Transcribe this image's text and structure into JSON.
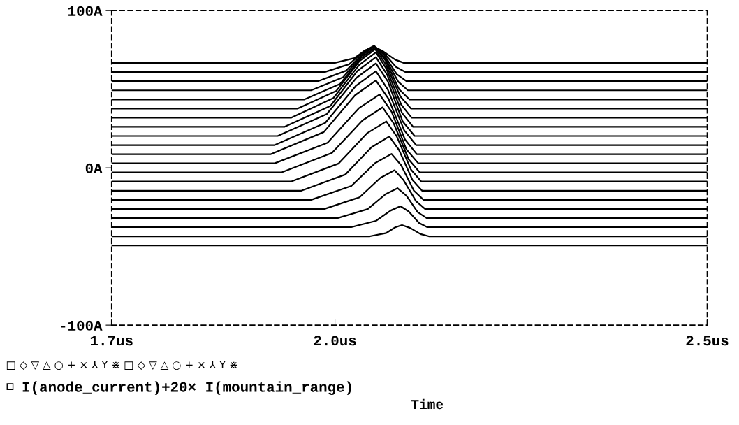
{
  "chart_data": {
    "type": "line",
    "xlabel": "Time",
    "annotations": [
      "□ ◇ ▽ △ ○ + × ⅄ Y ⋇ □ ◇ ▽ △ ○ + × ⅄ Y ⋇"
    ],
    "xlim": [
      1.7,
      2.5
    ],
    "xticks": [
      {
        "value": 1.7,
        "label": "1.7us"
      },
      {
        "value": 2.0,
        "label": "2.0us"
      },
      {
        "value": 2.5,
        "label": "2.5us"
      }
    ],
    "ylim": [
      -100,
      100
    ],
    "yticks": [
      {
        "value": 100,
        "label": "100A"
      },
      {
        "value": 0,
        "label": "0A"
      },
      {
        "value": -100,
        "label": "-100A"
      }
    ],
    "grid": false,
    "legend": "bottom left",
    "marker": "none",
    "line_style": "solid",
    "series": [
      {
        "name": "I(anode_current)+20× I(mountain_range)",
        "color": "#000000",
        "x": [
          1.7,
          1.999,
          2.026,
          2.041,
          2.052,
          2.064,
          2.081,
          2.093,
          2.5
        ],
        "values": [
          66.7,
          66.7,
          69.8,
          74.9,
          77.0,
          74.4,
          68.8,
          66.7,
          66.7
        ]
      },
      {
        "color": "#000000",
        "x": [
          1.7,
          1.986,
          2.019,
          2.039,
          2.052,
          2.065,
          2.082,
          2.095,
          2.5
        ],
        "values": [
          60.9,
          60.9,
          65.9,
          74.2,
          77.5,
          73.4,
          64.2,
          60.9,
          60.9
        ]
      },
      {
        "color": "#000000",
        "x": [
          1.7,
          1.977,
          2.015,
          2.038,
          2.053,
          2.066,
          2.083,
          2.096,
          2.5
        ],
        "values": [
          55.1,
          55.1,
          61.8,
          73.0,
          77.5,
          71.9,
          59.6,
          55.1,
          55.1
        ]
      },
      {
        "color": "#000000",
        "x": [
          1.7,
          1.968,
          2.011,
          2.036,
          2.053,
          2.067,
          2.085,
          2.098,
          2.5
        ],
        "values": [
          49.3,
          49.3,
          57.6,
          71.5,
          77.0,
          70.1,
          54.8,
          49.3,
          49.3
        ]
      },
      {
        "color": "#000000",
        "x": [
          1.7,
          1.959,
          2.007,
          2.035,
          2.054,
          2.068,
          2.086,
          2.1,
          2.5
        ],
        "values": [
          43.5,
          43.5,
          53.4,
          69.9,
          76.5,
          68.3,
          50.1,
          43.5,
          43.5
        ]
      },
      {
        "color": "#000000",
        "x": [
          1.7,
          1.95,
          2.002,
          2.033,
          2.054,
          2.068,
          2.088,
          2.102,
          2.5
        ],
        "values": [
          37.7,
          37.7,
          49.0,
          67.9,
          75.5,
          66.1,
          45.3,
          37.7,
          37.7
        ]
      },
      {
        "color": "#000000",
        "x": [
          1.7,
          1.941,
          1.998,
          2.032,
          2.055,
          2.069,
          2.089,
          2.103,
          2.5
        ],
        "values": [
          31.9,
          31.9,
          44.4,
          65.2,
          73.5,
          63.1,
          40.2,
          31.9,
          31.9
        ]
      },
      {
        "color": "#000000",
        "x": [
          1.7,
          1.932,
          1.994,
          2.03,
          2.055,
          2.07,
          2.09,
          2.105,
          2.5
        ],
        "values": [
          26.1,
          26.1,
          39.4,
          61.6,
          70.5,
          59.4,
          35.0,
          26.1,
          26.1
        ]
      },
      {
        "color": "#000000",
        "x": [
          1.7,
          1.923,
          1.989,
          2.029,
          2.055,
          2.071,
          2.091,
          2.107,
          2.5
        ],
        "values": [
          20.3,
          20.3,
          34.2,
          57.3,
          66.5,
          55.0,
          29.5,
          20.3,
          20.3
        ]
      },
      {
        "color": "#000000",
        "x": [
          1.7,
          1.919,
          1.987,
          2.028,
          2.055,
          2.071,
          2.093,
          2.109,
          2.5
        ],
        "values": [
          14.5,
          14.5,
          28.6,
          52.1,
          61.5,
          49.8,
          23.9,
          14.5,
          14.5
        ]
      },
      {
        "color": "#000000",
        "x": [
          1.7,
          1.914,
          1.985,
          2.027,
          2.055,
          2.072,
          2.094,
          2.11,
          2.5
        ],
        "values": [
          8.7,
          8.7,
          22.8,
          46.2,
          55.6,
          43.9,
          18.1,
          8.7,
          8.7
        ]
      },
      {
        "color": "#000000",
        "x": [
          1.7,
          1.919,
          1.99,
          2.032,
          2.06,
          2.076,
          2.096,
          2.112,
          2.5
        ],
        "values": [
          2.9,
          2.9,
          16.0,
          37.9,
          46.7,
          35.8,
          11.7,
          2.9,
          2.9
        ]
      },
      {
        "color": "#000000",
        "x": [
          1.7,
          1.928,
          1.996,
          2.037,
          2.064,
          2.079,
          2.099,
          2.114,
          2.5
        ],
        "values": [
          -2.9,
          -2.9,
          9.5,
          30.2,
          38.5,
          28.2,
          5.4,
          -2.9,
          -2.9
        ]
      },
      {
        "color": "#000000",
        "x": [
          1.7,
          1.941,
          2.005,
          2.043,
          2.069,
          2.083,
          2.102,
          2.116,
          2.5
        ],
        "values": [
          -8.7,
          -8.7,
          2.8,
          22.0,
          29.6,
          20.0,
          -1.0,
          -8.7,
          -8.7
        ]
      },
      {
        "color": "#000000",
        "x": [
          1.7,
          1.955,
          2.014,
          2.049,
          2.073,
          2.086,
          2.104,
          2.117,
          2.5
        ],
        "values": [
          -14.5,
          -14.5,
          -4.2,
          13.1,
          20.0,
          11.4,
          -7.6,
          -14.5,
          -14.5
        ]
      },
      {
        "color": "#000000",
        "x": [
          1.7,
          1.968,
          2.022,
          2.054,
          2.076,
          2.089,
          2.106,
          2.119,
          2.5
        ],
        "values": [
          -20.3,
          -20.3,
          -11.5,
          3.1,
          8.9,
          1.6,
          -14.5,
          -20.3,
          -20.3
        ]
      },
      {
        "color": "#000000",
        "x": [
          1.7,
          1.986,
          2.033,
          2.061,
          2.08,
          2.092,
          2.109,
          2.121,
          2.5
        ],
        "values": [
          -26.1,
          -26.1,
          -18.7,
          -6.4,
          -1.5,
          -7.7,
          -21.2,
          -26.1,
          -26.1
        ]
      },
      {
        "color": "#000000",
        "x": [
          1.7,
          2.004,
          2.044,
          2.068,
          2.084,
          2.096,
          2.111,
          2.123,
          2.5
        ],
        "values": [
          -31.9,
          -31.9,
          -26.2,
          -16.7,
          -12.9,
          -17.7,
          -28.1,
          -31.9,
          -31.9
        ]
      },
      {
        "color": "#000000",
        "x": [
          1.7,
          2.022,
          2.055,
          2.075,
          2.088,
          2.099,
          2.113,
          2.124,
          2.5
        ],
        "values": [
          -37.7,
          -37.7,
          -33.7,
          -27.1,
          -24.4,
          -27.7,
          -35.0,
          -37.7,
          -37.7
        ]
      },
      {
        "color": "#000000",
        "x": [
          1.7,
          2.047,
          2.069,
          2.081,
          2.09,
          2.101,
          2.115,
          2.126,
          2.5
        ],
        "values": [
          -43.5,
          -43.5,
          -41.4,
          -37.8,
          -36.4,
          -38.2,
          -42.1,
          -43.5,
          -43.5
        ]
      },
      {
        "color": "#000000",
        "x": [
          1.7,
          2.5
        ],
        "values": [
          -49.3,
          -49.3
        ]
      }
    ]
  }
}
